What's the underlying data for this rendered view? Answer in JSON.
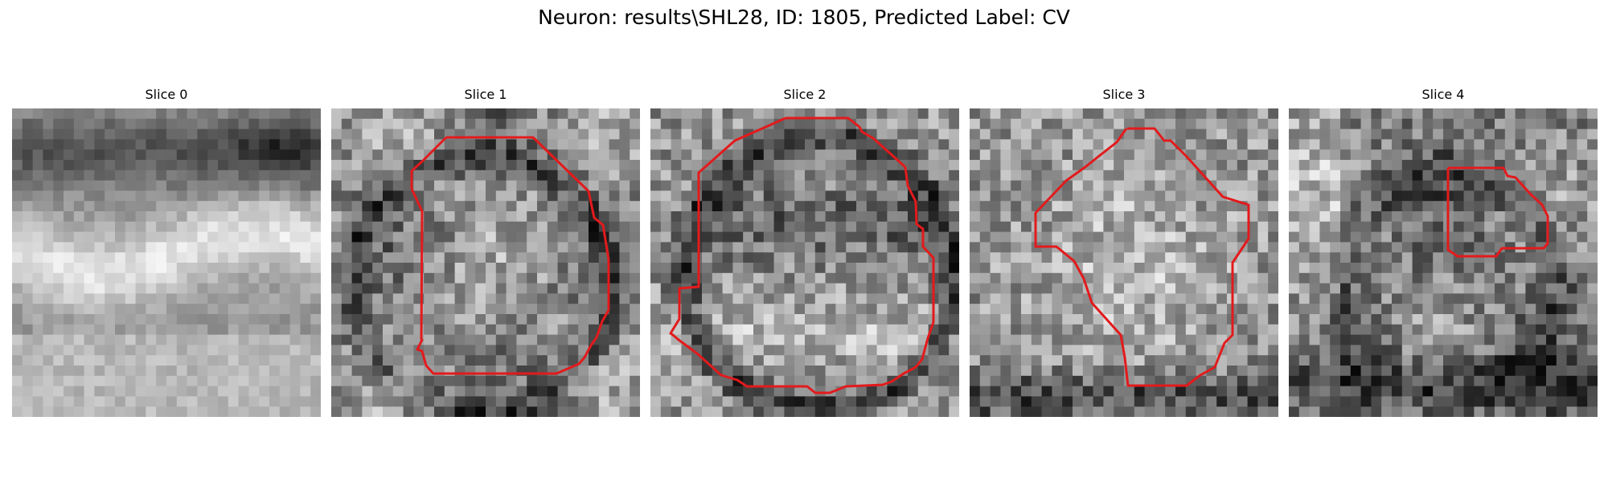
{
  "figure": {
    "title": "Neuron: results\\SHL28, ID: 1805, Predicted Label: CV"
  },
  "panels": [
    {
      "title": "Slice 0"
    },
    {
      "title": "Slice 1"
    },
    {
      "title": "Slice 2"
    },
    {
      "title": "Slice 3"
    },
    {
      "title": "Slice 4"
    }
  ],
  "colors": {
    "contour": "#e31a1c",
    "colormap": "gray"
  }
}
